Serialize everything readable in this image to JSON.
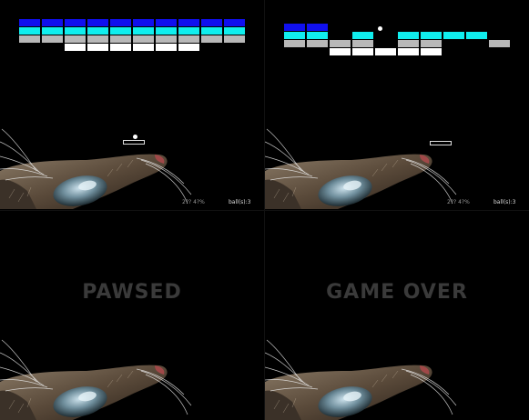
{
  "colors": {
    "blue": "#1010ee",
    "cyan": "#10eeee",
    "gray": "#b8b8b8",
    "white": "#ffffff",
    "overlay_text": "#3a3a3a"
  },
  "panels": [
    {
      "id": "playing",
      "balls_label": "ball(s):3",
      "score_label": "2?? 4?%",
      "rows": [
        [
          "blue",
          "blue",
          "blue",
          "blue",
          "blue",
          "blue",
          "blue",
          "blue",
          "blue",
          "blue"
        ],
        [
          "cyan",
          "cyan",
          "cyan",
          "cyan",
          "cyan",
          "cyan",
          "cyan",
          "cyan",
          "cyan",
          "cyan"
        ],
        [
          "gray",
          "gray",
          "gray",
          "gray",
          "gray",
          "gray",
          "gray",
          "gray",
          "gray",
          "gray"
        ],
        [
          null,
          null,
          "white",
          "white",
          "white",
          "white",
          "white",
          "white",
          null,
          null
        ]
      ]
    },
    {
      "id": "ball-lost",
      "balls_label": "ball(s):3",
      "score_label": "2?? 4?%",
      "rows": [
        [
          "blue",
          "blue",
          null,
          null,
          null,
          null,
          null,
          null,
          null,
          null
        ],
        [
          "cyan",
          "cyan",
          null,
          "cyan",
          null,
          "cyan",
          "cyan",
          "cyan",
          "cyan",
          null
        ],
        [
          "gray",
          "gray",
          "gray",
          "gray",
          null,
          "gray",
          "gray",
          null,
          null,
          "gray"
        ],
        [
          null,
          null,
          "white",
          "white",
          "white",
          "white",
          "white",
          null,
          null,
          null
        ]
      ]
    },
    {
      "id": "paused",
      "message": "PAWSED"
    },
    {
      "id": "game-over",
      "message": "GAME OVER"
    }
  ]
}
